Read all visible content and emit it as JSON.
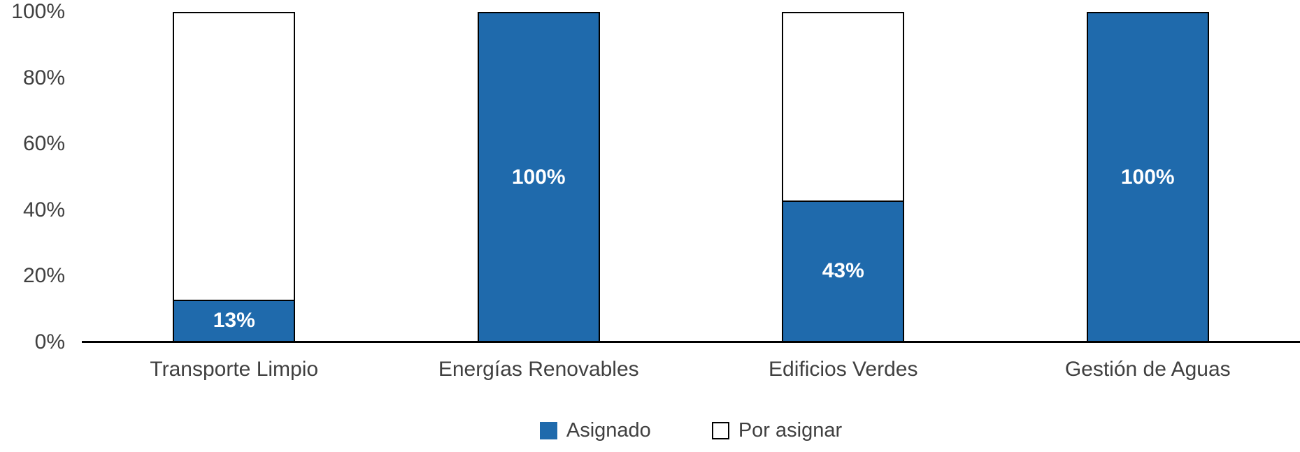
{
  "chart_data": {
    "type": "bar",
    "subtype": "100-percent-stacked-column",
    "title": "",
    "categories": [
      "Transporte Limpio",
      "Energías Renovables",
      "Edificios Verdes",
      "Gestión de Aguas"
    ],
    "series": [
      {
        "name": "Asignado",
        "values": [
          13,
          100,
          43,
          100
        ],
        "data_labels": [
          "13%",
          "100%",
          "43%",
          "100%"
        ],
        "color": "#1F6AAC"
      },
      {
        "name": "Por asignar",
        "values": [
          87,
          0,
          57,
          0
        ],
        "data_labels": [
          "",
          "",
          "",
          ""
        ],
        "color": "#FFFFFF"
      }
    ],
    "y_axis": {
      "min": 0,
      "max": 100,
      "tick_labels": [
        "0%",
        "20%",
        "40%",
        "60%",
        "80%",
        "100%"
      ]
    },
    "grid": false,
    "legend": {
      "position": "bottom",
      "entries": [
        "Asignado",
        "Por asignar"
      ]
    },
    "colors": {
      "assigned_fill": "#1F6AAC",
      "remaining_fill": "#FFFFFF",
      "bar_border": "#000000",
      "axis_line": "#000000",
      "axis_text": "#404040",
      "data_label_text": "#FFFFFF",
      "background": "#FFFFFF"
    }
  }
}
